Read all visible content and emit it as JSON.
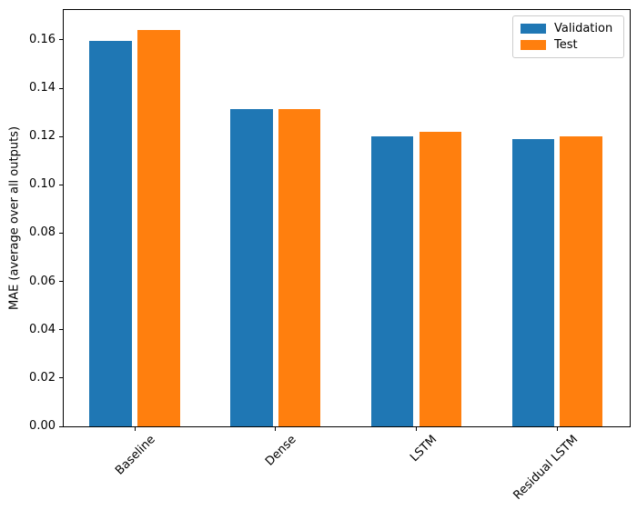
{
  "figure": {
    "background": "#ffffff",
    "axis_color": "#000000",
    "legend_border_color": "#cccccc"
  },
  "chart_data": {
    "type": "bar",
    "title": "",
    "categories": [
      "Baseline",
      "Dense",
      "LSTM",
      "Residual LSTM"
    ],
    "series": [
      {
        "name": "Validation",
        "color": "#1f77b4",
        "values": [
          0.1595,
          0.1312,
          0.1202,
          0.1188
        ]
      },
      {
        "name": "Test",
        "color": "#ff7f0e",
        "values": [
          0.1643,
          0.1312,
          0.1218,
          0.1199
        ]
      }
    ],
    "xlabel": "",
    "ylabel": "MAE (average over all outputs)",
    "ylim": [
      0,
      0.1724
    ],
    "yticks": [
      0.0,
      0.02,
      0.04,
      0.06,
      0.08,
      0.1,
      0.12,
      0.14,
      0.16
    ],
    "ytick_labels": [
      "0.00",
      "0.02",
      "0.04",
      "0.06",
      "0.08",
      "0.10",
      "0.12",
      "0.14",
      "0.16"
    ],
    "xtick_rotation": 45,
    "grid": false,
    "bar_width_fraction": 0.3,
    "bar_offset_fraction": 0.17,
    "legend": {
      "position": "upper right",
      "entries": [
        "Validation",
        "Test"
      ]
    }
  }
}
